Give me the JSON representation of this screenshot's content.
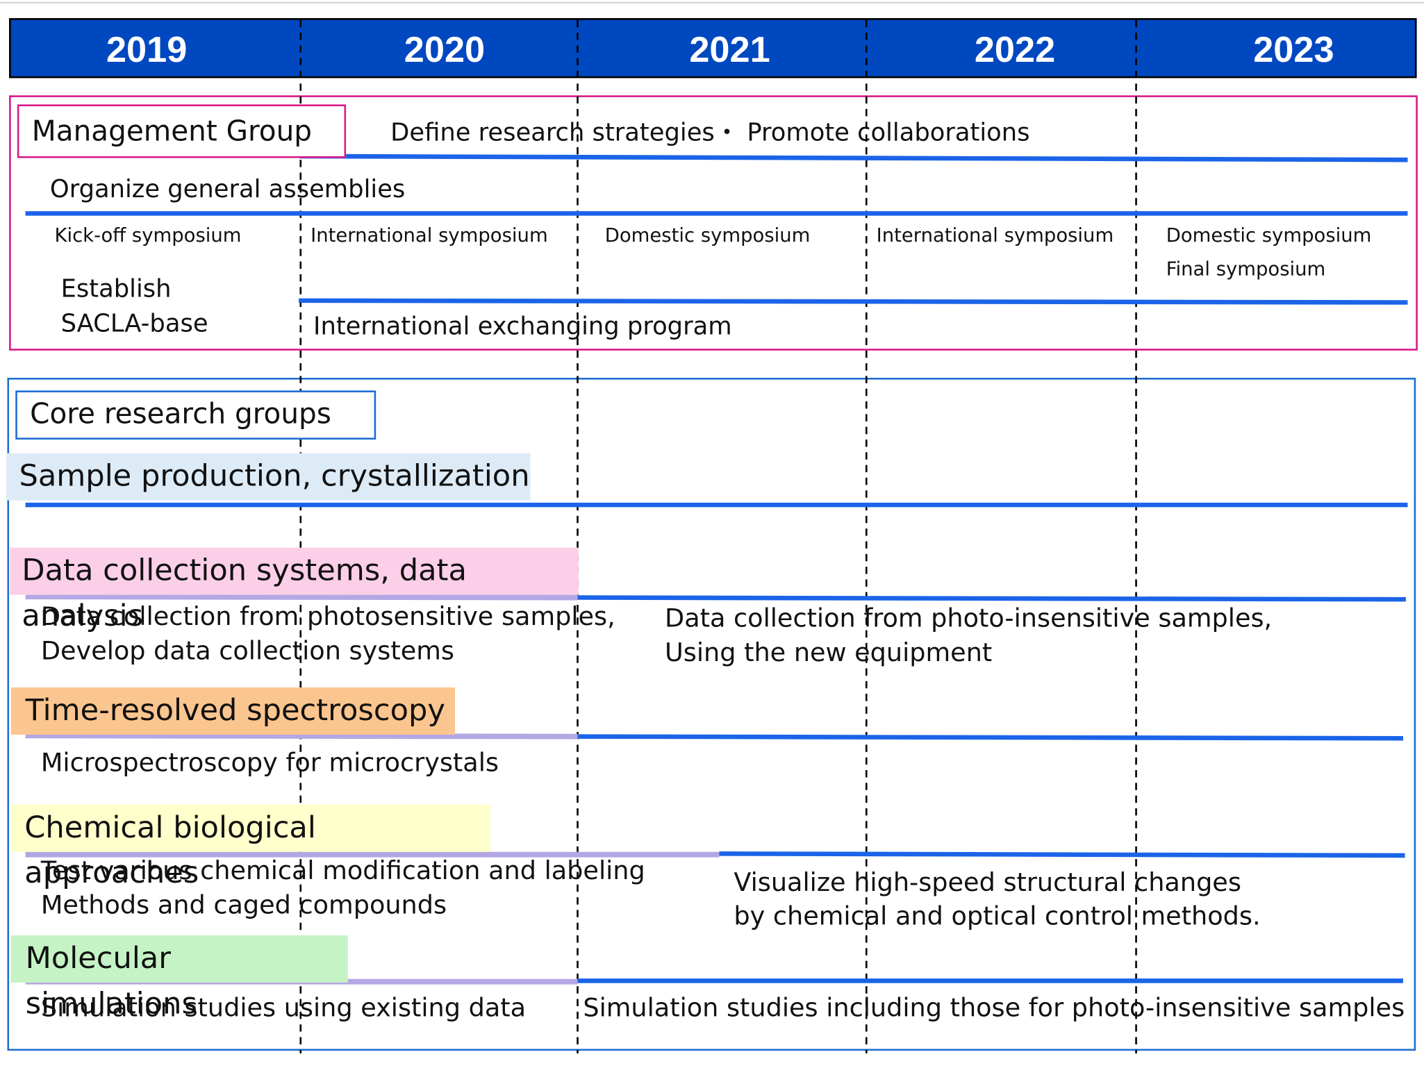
{
  "years": [
    "2019",
    "2020",
    "2021",
    "2022",
    "2023"
  ],
  "management": {
    "title": "Management Group",
    "strategy": "Define research strategies・ Promote collaborations",
    "assemblies": "Organize general assemblies",
    "symposia": [
      "Kick-off symposium",
      "International symposium",
      "Domestic symposium",
      "International symposium",
      "Domestic symposium"
    ],
    "final_symposium": "Final symposium",
    "establish_line1": "Establish",
    "establish_line2": "SACLA-base",
    "exchange": "International exchanging program"
  },
  "core": {
    "title": "Core research groups",
    "sample": {
      "label": "Sample production, crystallization",
      "color": "#ddebf7"
    },
    "data_collection": {
      "label": "Data collection systems, data analysis",
      "color": "#fccfe8",
      "left_line1": "Data collection from photosensitive samples,",
      "left_line2": "Develop data collection systems",
      "right_line1": "Data collection from photo-insensitive samples,",
      "right_line2": "Using the new equipment"
    },
    "spectroscopy": {
      "label": "Time-resolved spectroscopy",
      "color": "#fbc58f",
      "note": "Microspectroscopy for microcrystals"
    },
    "chemical": {
      "label": "Chemical biological approaches",
      "color": "#ffffcc",
      "left_line1": "Test various chemical modification and labeling",
      "left_line2": "Methods and caged compounds",
      "right_line1": "Visualize high-speed structural changes",
      "right_line2": "by chemical and optical control methods."
    },
    "simulation": {
      "label": "Molecular simulations",
      "color": "#c6f3c6",
      "left": "Simulation studies using existing data",
      "right": "Simulation studies including those for photo-insensitive samples"
    }
  },
  "colors": {
    "year_bar": "#0048c0",
    "timeline": "#1b64e8",
    "early_phase": "#b4a7e4",
    "management_border": "#d81b8a",
    "core_border": "#1f6ed4"
  }
}
